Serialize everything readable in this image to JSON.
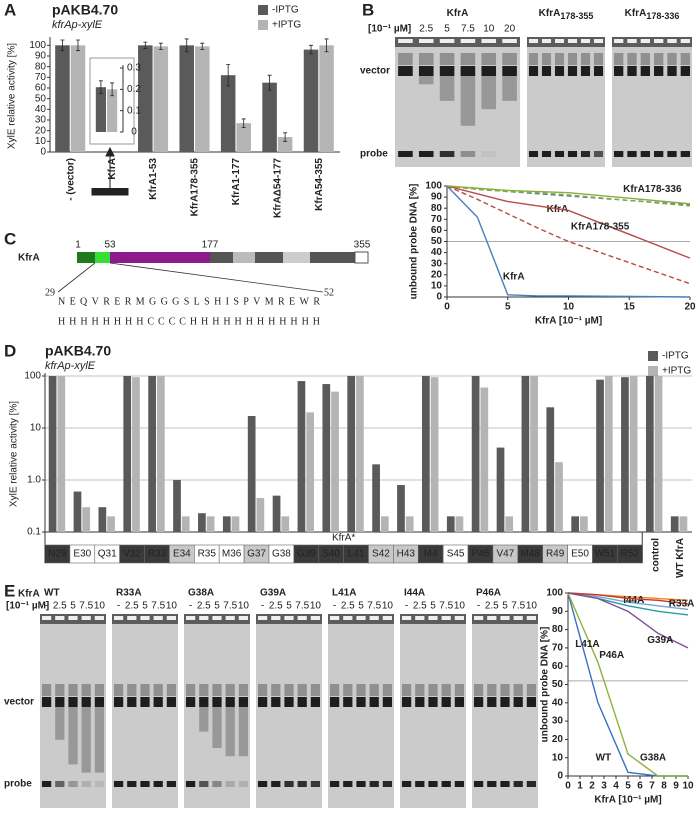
{
  "panel_labels": [
    "A",
    "B",
    "C",
    "D",
    "E"
  ],
  "chart_data": [
    {
      "type": "bar",
      "title": "pAKB4.70",
      "subtitle": "kfrAp-xylE",
      "ylabel": "XylE relative activity [%]",
      "categories": [
        "- (vector)",
        "KfrA",
        "KfrA1-53",
        "KfrA178-355",
        "KfrA1-177",
        "KfrAΔ54-177",
        "KfrA54-355"
      ],
      "series": [
        {
          "name": "-IPTG",
          "color": "#5a5a5a",
          "values": [
            100,
            null,
            100,
            100,
            72,
            65,
            96
          ],
          "errors": [
            5,
            null,
            3,
            6,
            10,
            7,
            4
          ]
        },
        {
          "name": "+IPTG",
          "color": "#b4b4b4",
          "values": [
            100,
            null,
            99,
            99,
            27,
            14,
            100
          ],
          "errors": [
            5,
            null,
            3,
            3,
            4,
            4,
            6
          ]
        }
      ],
      "ylim": [
        0,
        105
      ],
      "yticks": [
        0,
        10,
        20,
        30,
        40,
        50,
        60,
        70,
        80,
        90,
        100
      ],
      "legend": "upper right"
    },
    {
      "type": "bar",
      "categories": [
        null
      ],
      "series": [
        {
          "color": "#5a5a5a",
          "values": [
            0.21
          ],
          "errors": [
            0.03
          ]
        },
        {
          "color": "#b4b4b4",
          "values": [
            0.2
          ],
          "errors": [
            0.03
          ]
        }
      ],
      "ylim": [
        0,
        0.3
      ],
      "yticks": [
        0,
        0.1,
        0.2,
        0.3
      ]
    },
    {
      "type": "line",
      "xlabel": "KfrA [10⁻¹ µM]",
      "ylabel": "unbound probe DNA [%]",
      "x": [
        0,
        2.5,
        5,
        7.5,
        10,
        20
      ],
      "xlim": [
        0,
        20
      ],
      "xticks": [
        0,
        5,
        10,
        15,
        20
      ],
      "ylim": [
        0,
        100
      ],
      "yticks": [
        0,
        10,
        20,
        30,
        40,
        50,
        60,
        70,
        80,
        90,
        100
      ],
      "reference_line": 50,
      "series": [
        {
          "name": "KfrA",
          "color": "#4a7ebb",
          "values": [
            100,
            72,
            2,
            1,
            1,
            0
          ]
        },
        {
          "name": "KfrA",
          "color": "#4a7ebb",
          "dash": true,
          "values": [
            100,
            97,
            95,
            93,
            91,
            83
          ]
        },
        {
          "name": "KfrA178-355",
          "color": "#b94a48",
          "values": [
            100,
            93,
            86,
            82,
            78,
            35
          ]
        },
        {
          "color": "#b94a48",
          "dash": true,
          "values": [
            100,
            88,
            75,
            62,
            50,
            12
          ]
        },
        {
          "name": "KfrA178-336",
          "color": "#8aac3f",
          "values": [
            100,
            98,
            96,
            95,
            94,
            84
          ]
        },
        {
          "color": "#8aac3f",
          "dash": true,
          "values": [
            100,
            97,
            95,
            94,
            92,
            82
          ]
        }
      ]
    },
    {
      "type": "bar",
      "title": "pAKB4.70",
      "subtitle": "kfrAp-xylE",
      "ylabel": "XylE relative activity [%]",
      "log_scale": true,
      "grid": true,
      "legend": "upper right",
      "group_label": "KfrA*",
      "ylim": [
        0.1,
        100
      ],
      "yticks": [
        0.1,
        {
          "value": 1,
          "label": "1.0"
        },
        10,
        100
      ],
      "categories": [
        "N29",
        "E30",
        "Q31",
        "V32",
        "R33",
        "E34",
        "R35",
        "M36",
        "G37",
        "G38",
        "G39",
        "S40",
        "L41",
        "S42",
        "H43",
        "I44",
        "S45",
        "P46",
        "V47",
        "M48",
        "R49",
        "E50",
        "W51",
        "R52",
        "control",
        "WT KfrA"
      ],
      "cell_colors": [
        "#3a3a3a",
        "#ffffff",
        "#ffffff",
        "#3a3a3a",
        "#3a3a3a",
        "#c8c8c8",
        "#ffffff",
        "#ffffff",
        "#c8c8c8",
        "#ffffff",
        "#3a3a3a",
        "#3a3a3a",
        "#3a3a3a",
        "#c8c8c8",
        "#c8c8c8",
        "#3a3a3a",
        "#ffffff",
        "#3a3a3a",
        "#c8c8c8",
        "#3a3a3a",
        "#c8c8c8",
        "#ffffff",
        "#3a3a3a",
        "#3a3a3a"
      ],
      "series": [
        {
          "name": "-IPTG",
          "color": "#5a5a5a",
          "values": [
            100,
            0.6,
            0.3,
            100,
            100,
            1.0,
            0.23,
            0.2,
            17,
            0.5,
            80,
            70,
            100,
            2.0,
            0.8,
            100,
            0.2,
            100,
            4.2,
            100,
            25,
            0.2,
            85,
            95,
            100,
            0.2
          ]
        },
        {
          "name": "+IPTG",
          "color": "#b4b4b4",
          "values": [
            100,
            0.3,
            0.2,
            95,
            100,
            0.2,
            0.2,
            0.2,
            0.45,
            0.2,
            20,
            50,
            100,
            0.2,
            0.2,
            95,
            0.2,
            60,
            0.2,
            100,
            2.2,
            0.2,
            100,
            100,
            100,
            0.2
          ]
        }
      ]
    },
    {
      "type": "line",
      "xlabel": "KfrA [10⁻¹ µM]",
      "ylabel": "unbound probe DNA [%]",
      "x": [
        0,
        2.5,
        5,
        7.5,
        10
      ],
      "xlim": [
        0,
        10
      ],
      "xticks": [
        0,
        1,
        2,
        3,
        4,
        5,
        6,
        7,
        8,
        9,
        10
      ],
      "ylim": [
        0,
        100
      ],
      "yticks": [
        0,
        10,
        20,
        30,
        40,
        50,
        60,
        70,
        80,
        90,
        100
      ],
      "reference_line": 52,
      "series": [
        {
          "name": "WT",
          "color": "#3a6fc4",
          "values": [
            100,
            40,
            2,
            0,
            0
          ]
        },
        {
          "name": "G38A",
          "color": "#8db33a",
          "values": [
            100,
            62,
            12,
            0,
            0
          ]
        },
        {
          "name": "L41A",
          "color": "#2a9aa8",
          "values": [
            100,
            97,
            93,
            90,
            88
          ]
        },
        {
          "name": "P46A",
          "color": "#79a6d2",
          "values": [
            100,
            98,
            95,
            93,
            91
          ]
        },
        {
          "name": "I44A",
          "color": "#e8892b",
          "values": [
            100,
            99,
            98,
            97,
            96
          ]
        },
        {
          "name": "R33A",
          "color": "#c0392b",
          "values": [
            100,
            99,
            97,
            96,
            94
          ]
        },
        {
          "name": "G39A",
          "color": "#7d4f96",
          "values": [
            100,
            97,
            90,
            78,
            70
          ]
        }
      ]
    }
  ],
  "gel_b": {
    "unit": "[10⁻¹ µM]",
    "titles": [
      {
        "name": "KfrA"
      },
      {
        "name": "KfrA",
        "sub": "178-355"
      },
      {
        "name": "KfrA",
        "sub": "178-336"
      }
    ],
    "lanes": [
      "-",
      "2.5",
      "5",
      "7.5",
      "10",
      "20"
    ],
    "vector": "vector",
    "probe": "probe"
  },
  "diagram_c": {
    "protein": "KfrA",
    "positions": [
      "1",
      "53",
      "177",
      "355"
    ],
    "start": "29",
    "end": "52",
    "sequence": "NEQVRERMGGGSLSHISPVMREWR",
    "structure": "HHHHHHHHCCCCHHHHHHHHHHHH"
  },
  "gel_e": {
    "protein": "KfrA",
    "unit": "[10⁻¹ µM]",
    "titles": [
      "WT",
      "R33A",
      "G38A",
      "G39A",
      "L41A",
      "I44A",
      "P46A"
    ],
    "lanes": [
      "-",
      "2.5",
      "5",
      "7.5",
      "10"
    ],
    "vector": "vector",
    "probe": "probe"
  }
}
